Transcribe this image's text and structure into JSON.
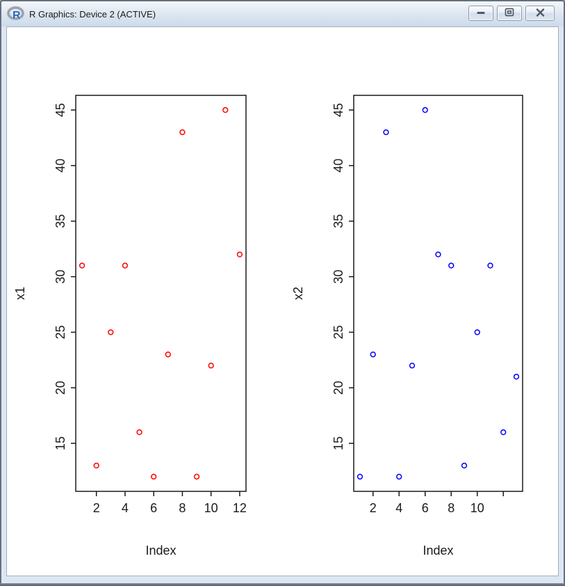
{
  "window": {
    "title": "R Graphics: Device 2 (ACTIVE)",
    "icon": "r-logo",
    "controls": [
      {
        "name": "minimize"
      },
      {
        "name": "maximize"
      },
      {
        "name": "close"
      }
    ]
  },
  "chart_data": [
    {
      "type": "scatter",
      "panel": "left",
      "title": "",
      "xlabel": "Index",
      "ylabel": "x1",
      "x": [
        1,
        2,
        3,
        4,
        5,
        6,
        7,
        8,
        9,
        10,
        11,
        12
      ],
      "y": [
        31,
        13,
        25,
        31,
        16,
        12,
        23,
        43,
        12,
        22,
        45,
        32
      ],
      "marker": "open-circle",
      "point_color": "#FF0000",
      "axis_color": "#1a1a1a",
      "xtick_values": [
        2,
        4,
        6,
        8,
        10,
        12
      ],
      "xtick_labels": [
        "2",
        "4",
        "6",
        "8",
        "10",
        "12"
      ],
      "ytick_values": [
        15,
        20,
        25,
        30,
        35,
        40,
        45
      ],
      "ytick_labels": [
        "15",
        "20",
        "25",
        "30",
        "35",
        "40",
        "45"
      ],
      "xlim": [
        0.56,
        12.44
      ],
      "ylim": [
        10.68,
        46.32
      ],
      "grid": false,
      "legend": "none"
    },
    {
      "type": "scatter",
      "panel": "right",
      "title": "",
      "xlabel": "Index",
      "ylabel": "x2",
      "x": [
        1,
        2,
        3,
        4,
        5,
        6,
        7,
        8,
        9,
        10,
        11,
        12,
        13
      ],
      "y": [
        12,
        23,
        43,
        12,
        22,
        45,
        32,
        31,
        13,
        25,
        31,
        16,
        21
      ],
      "marker": "open-circle",
      "point_color": "#0000FF",
      "axis_color": "#1a1a1a",
      "xtick_values": [
        2,
        4,
        6,
        8,
        10,
        12
      ],
      "xtick_labels": [
        "2",
        "4",
        "6",
        "8",
        "10",
        ""
      ],
      "ytick_values": [
        15,
        20,
        25,
        30,
        35,
        40,
        45
      ],
      "ytick_labels": [
        "15",
        "20",
        "25",
        "30",
        "35",
        "40",
        "45"
      ],
      "xlim": [
        0.52,
        13.48
      ],
      "ylim": [
        10.68,
        46.32
      ],
      "grid": false,
      "legend": "none"
    }
  ]
}
